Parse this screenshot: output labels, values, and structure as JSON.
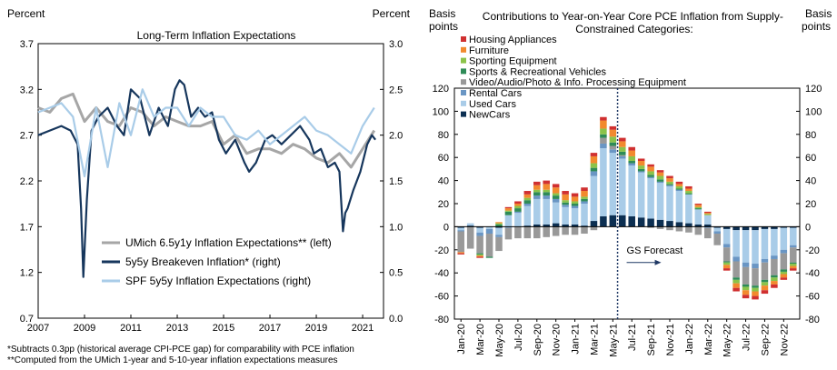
{
  "chart_data": [
    {
      "type": "line",
      "title": "Long-Term Inflation Expectations",
      "ylabel_left": "Percent",
      "ylabel_right": "Percent",
      "x_ticks": [
        "2007",
        "2009",
        "2011",
        "2013",
        "2015",
        "2017",
        "2019",
        "2021"
      ],
      "x_range": [
        2007,
        2021.9
      ],
      "y_left_ticks": [
        "3.7",
        "3.2",
        "2.7",
        "2.2",
        "1.7",
        "1.2",
        "0.7"
      ],
      "y_left_range": [
        0.7,
        3.7
      ],
      "y_right_ticks": [
        "3.0",
        "2.5",
        "2.0",
        "1.5",
        "1.0",
        "0.5",
        "0.0"
      ],
      "y_right_range": [
        0.0,
        3.0
      ],
      "colors": {
        "umich": "#a6a6a6",
        "breakeven": "#16365c",
        "spf": "#a9cce8"
      },
      "series": [
        {
          "name": "UMich 6.5y1y Inflation Expectations** (left)",
          "axis": "left",
          "x": [
            2007.0,
            2007.5,
            2008.0,
            2008.5,
            2009.0,
            2009.5,
            2010.0,
            2010.5,
            2011.0,
            2011.5,
            2012.0,
            2012.5,
            2013.0,
            2013.5,
            2014.0,
            2014.5,
            2015.0,
            2015.5,
            2016.0,
            2016.5,
            2017.0,
            2017.5,
            2018.0,
            2018.5,
            2019.0,
            2019.5,
            2020.0,
            2020.5,
            2021.0,
            2021.5
          ],
          "values": [
            3.0,
            2.95,
            3.1,
            3.15,
            2.85,
            3.0,
            2.85,
            2.8,
            3.0,
            2.95,
            2.8,
            2.9,
            2.85,
            2.8,
            2.8,
            2.85,
            2.6,
            2.7,
            2.5,
            2.55,
            2.55,
            2.5,
            2.6,
            2.55,
            2.45,
            2.4,
            2.5,
            2.35,
            2.55,
            2.75
          ]
        },
        {
          "name": "5y5y Breakeven Inflation* (right)",
          "axis": "right",
          "x": [
            2007.0,
            2007.5,
            2008.0,
            2008.4,
            2008.7,
            2008.85,
            2008.95,
            2009.1,
            2009.3,
            2009.6,
            2010.0,
            2010.4,
            2010.7,
            2011.0,
            2011.4,
            2011.8,
            2012.2,
            2012.6,
            2012.9,
            2013.1,
            2013.3,
            2013.6,
            2013.9,
            2014.2,
            2014.5,
            2014.8,
            2015.1,
            2015.5,
            2015.9,
            2016.1,
            2016.4,
            2016.8,
            2017.1,
            2017.5,
            2017.9,
            2018.3,
            2018.7,
            2018.9,
            2019.2,
            2019.5,
            2019.8,
            2020.0,
            2020.15,
            2020.25,
            2020.35,
            2020.6,
            2020.9,
            2021.2,
            2021.4,
            2021.55
          ],
          "values": [
            2.0,
            2.05,
            2.1,
            2.05,
            1.9,
            1.2,
            0.45,
            1.3,
            2.05,
            2.2,
            2.3,
            2.1,
            2.0,
            2.5,
            2.4,
            2.0,
            2.3,
            2.1,
            2.5,
            2.6,
            2.55,
            2.2,
            2.3,
            2.2,
            2.25,
            1.95,
            1.8,
            1.95,
            1.7,
            1.6,
            1.7,
            1.95,
            2.0,
            1.9,
            2.0,
            2.1,
            1.95,
            1.8,
            1.85,
            1.65,
            1.7,
            1.6,
            0.95,
            1.15,
            1.2,
            1.4,
            1.6,
            1.9,
            2.0,
            1.95
          ]
        },
        {
          "name": "SPF 5y5y Inflation Expectations (right)",
          "axis": "right",
          "x": [
            2007.0,
            2007.5,
            2008.0,
            2008.5,
            2009.0,
            2009.5,
            2010.0,
            2010.5,
            2011.0,
            2011.5,
            2012.0,
            2012.5,
            2013.0,
            2013.5,
            2014.0,
            2014.5,
            2015.0,
            2015.5,
            2016.0,
            2016.5,
            2017.0,
            2017.5,
            2018.0,
            2018.5,
            2019.0,
            2019.5,
            2020.0,
            2020.5,
            2021.0,
            2021.25,
            2021.5
          ],
          "values": [
            2.25,
            2.3,
            2.35,
            2.2,
            1.55,
            2.3,
            1.65,
            2.35,
            2.0,
            2.5,
            2.2,
            2.3,
            2.3,
            2.1,
            2.3,
            2.2,
            2.2,
            2.0,
            1.95,
            2.05,
            1.9,
            2.0,
            2.1,
            2.2,
            2.05,
            2.0,
            1.9,
            1.8,
            2.1,
            2.2,
            2.3
          ]
        }
      ],
      "legend": [
        "UMich 6.5y1y Inflation Expectations** (left)",
        "5y5y Breakeven Inflation* (right)",
        "SPF 5y5y Inflation Expectations (right)"
      ],
      "legend_position": "bottom-left"
    },
    {
      "type": "bar",
      "stacked": true,
      "title": "Contributions to Year-on-Year Core PCE Inflation from Supply-Constrained Categories:",
      "ylabel_left": "Basis points",
      "ylabel_right": "Basis points",
      "y_ticks": [
        "120",
        "100",
        "80",
        "60",
        "40",
        "20",
        "0",
        "-20",
        "-40",
        "-60",
        "-80"
      ],
      "y_range": [
        -80,
        120
      ],
      "x_tick_labels": [
        "Jan-20",
        "Mar-20",
        "May-20",
        "Jul-20",
        "Sep-20",
        "Nov-20",
        "Jan-21",
        "Mar-21",
        "May-21",
        "Jul-21",
        "Sep-21",
        "Nov-21",
        "Jan-22",
        "Mar-22",
        "May-22",
        "Jul-22",
        "Sep-22",
        "Nov-22"
      ],
      "annotation": "GS Forecast",
      "forecast_starts_after": "May-21",
      "categories": [
        "Jan-20",
        "Feb-20",
        "Mar-20",
        "Apr-20",
        "May-20",
        "Jun-20",
        "Jul-20",
        "Aug-20",
        "Sep-20",
        "Oct-20",
        "Nov-20",
        "Dec-20",
        "Jan-21",
        "Feb-21",
        "Mar-21",
        "Apr-21",
        "May-21",
        "Jun-21",
        "Jul-21",
        "Aug-21",
        "Sep-21",
        "Oct-21",
        "Nov-21",
        "Dec-21",
        "Jan-22",
        "Feb-22",
        "Mar-22",
        "Apr-22",
        "May-22",
        "Jun-22",
        "Jul-22",
        "Aug-22",
        "Sep-22",
        "Oct-22",
        "Nov-22",
        "Dec-22"
      ],
      "legend": [
        "Housing Appliances",
        "Furniture",
        "Sporting Equipment",
        "Sports & Recreational Vehicles",
        "Video/Audio/Photo & Info. Processing Equipment",
        "Rental Cars",
        "Used Cars",
        "NewCars"
      ],
      "legend_position": "top-left",
      "series": [
        {
          "name": "NewCars",
          "color": "#0c2f52",
          "values": [
            -1,
            1,
            -1,
            0,
            -1,
            0,
            0,
            1,
            2,
            2,
            3,
            2,
            2,
            1,
            5,
            9,
            10,
            10,
            9,
            8,
            7,
            6,
            5,
            4,
            3,
            2,
            2,
            -1,
            -2,
            -3,
            -3,
            -3,
            -2,
            -2,
            -1,
            -1
          ]
        },
        {
          "name": "Used Cars",
          "color": "#a9cce8",
          "values": [
            -2,
            2,
            -4,
            -2,
            -6,
            10,
            12,
            17,
            22,
            22,
            18,
            15,
            14,
            19,
            39,
            59,
            54,
            49,
            44,
            39,
            35,
            32,
            30,
            27,
            25,
            13,
            8,
            -3,
            -13,
            -23,
            -28,
            -29,
            -26,
            -23,
            -19,
            -15
          ]
        },
        {
          "name": "Rental Cars",
          "color": "#6a96c4",
          "values": [
            -1,
            0,
            -3,
            -4,
            -2,
            -1,
            1,
            2,
            3,
            3,
            3,
            2,
            2,
            2,
            4,
            4,
            3,
            2,
            2,
            1,
            1,
            1,
            1,
            1,
            0,
            0,
            -1,
            -2,
            -3,
            -4,
            -4,
            -4,
            -3,
            -3,
            -3,
            -2
          ]
        },
        {
          "name": "Video/Audio/Photo & Info. Processing Equipment",
          "color": "#999999",
          "values": [
            -18,
            -19,
            -15,
            -20,
            -12,
            -10,
            -10,
            -10,
            -10,
            -9,
            -8,
            -7,
            -7,
            -6,
            -3,
            5,
            3,
            1,
            0,
            0,
            -1,
            -2,
            -3,
            -4,
            -5,
            -7,
            -9,
            -10,
            -12,
            -14,
            -15,
            -15,
            -15,
            -14,
            -14,
            -13
          ]
        },
        {
          "name": "Sports & Recreational Vehicles",
          "color": "#2e8b57",
          "values": [
            0,
            0,
            -1,
            -1,
            2,
            3,
            3,
            3,
            3,
            3,
            3,
            2,
            2,
            2,
            3,
            3,
            3,
            3,
            2,
            2,
            2,
            2,
            1,
            1,
            1,
            1,
            0,
            0,
            -1,
            -2,
            -2,
            -2,
            -2,
            -2,
            -2,
            -1
          ]
        },
        {
          "name": "Sporting Equipment",
          "color": "#8bc34a",
          "values": [
            0,
            0,
            -1,
            0,
            1,
            1,
            2,
            2,
            2,
            2,
            2,
            2,
            2,
            2,
            4,
            5,
            5,
            4,
            4,
            3,
            3,
            3,
            2,
            2,
            2,
            1,
            1,
            0,
            -2,
            -3,
            -3,
            -3,
            -3,
            -3,
            -2,
            -2
          ]
        },
        {
          "name": "Furniture",
          "color": "#f28a2e",
          "values": [
            -1,
            0,
            -1,
            0,
            1,
            2,
            2,
            3,
            4,
            5,
            5,
            5,
            4,
            5,
            6,
            7,
            6,
            5,
            5,
            4,
            4,
            3,
            3,
            2,
            2,
            2,
            1,
            0,
            -3,
            -4,
            -4,
            -4,
            -4,
            -3,
            -3,
            -2
          ]
        },
        {
          "name": "Housing Appliances",
          "color": "#d03030",
          "values": [
            -1,
            0,
            -1,
            0,
            0,
            1,
            2,
            3,
            3,
            3,
            3,
            3,
            3,
            3,
            3,
            3,
            3,
            3,
            3,
            2,
            2,
            2,
            2,
            2,
            2,
            1,
            1,
            0,
            -2,
            -3,
            -3,
            -3,
            -3,
            -3,
            -2,
            -2
          ]
        }
      ]
    }
  ],
  "footnotes": [
    "*Subtracts 0.3pp (historical average CPI-PCE  gap) for comparability with PCE  inflation",
    "**Computed  from the UMich  1-year and 5-10-year inflation expectations measures"
  ]
}
